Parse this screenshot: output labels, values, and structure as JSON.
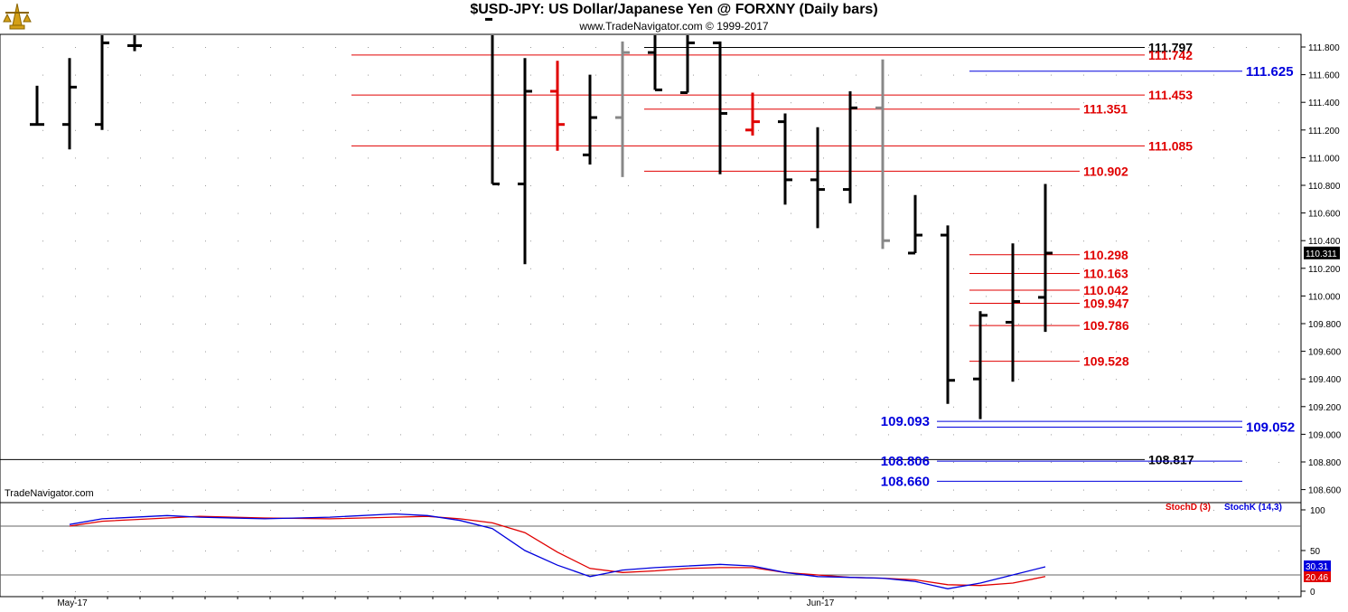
{
  "title": "$USD-JPY:  US Dollar/Japanese Yen @ FORXNY  (Daily bars)",
  "subtitle": "www.TradeNavigator.com © 1999-2017",
  "watermark": "TradeNavigator.com",
  "colors": {
    "black": "#000000",
    "red": "#e00000",
    "blue": "#0000dd",
    "gray": "#888888"
  },
  "chart_data": [
    {
      "type": "ohlc",
      "x_labels": [
        {
          "label": "May-17",
          "bar": 1
        },
        {
          "label": "Jun-17",
          "bar": 24
        }
      ],
      "y_ticks": [
        "111.800",
        "111.600",
        "111.400",
        "111.200",
        "111.000",
        "110.800",
        "110.600",
        "110.400",
        "110.200",
        "110.000",
        "109.800",
        "109.600",
        "109.400",
        "109.200",
        "109.000",
        "108.800",
        "108.600"
      ],
      "ylim": [
        108.5,
        112.0
      ],
      "last_price": "110.311",
      "bars": [
        {
          "bar": 0,
          "o": 111.24,
          "h": 111.52,
          "l": 111.24,
          "c": 111.24,
          "color": "black"
        },
        {
          "bar": 1,
          "o": 111.24,
          "h": 111.72,
          "l": 111.06,
          "c": 111.51,
          "color": "black"
        },
        {
          "bar": 2,
          "o": 111.24,
          "h": 112.0,
          "l": 111.2,
          "c": 111.83,
          "color": "black"
        },
        {
          "bar": 3,
          "o": 111.81,
          "h": 112.0,
          "l": 111.77,
          "c": 111.81,
          "color": "black"
        },
        {
          "bar": 14,
          "o": 112.0,
          "h": 112.0,
          "l": 110.81,
          "c": 110.81,
          "color": "black"
        },
        {
          "bar": 15,
          "o": 110.81,
          "h": 111.72,
          "l": 110.23,
          "c": 111.48,
          "color": "black"
        },
        {
          "bar": 16,
          "o": 111.48,
          "h": 111.7,
          "l": 111.05,
          "c": 111.24,
          "color": "red"
        },
        {
          "bar": 17,
          "o": 111.02,
          "h": 111.6,
          "l": 110.95,
          "c": 111.29,
          "color": "black"
        },
        {
          "bar": 18,
          "o": 111.29,
          "h": 111.84,
          "l": 110.86,
          "c": 111.76,
          "color": "gray"
        },
        {
          "bar": 19,
          "o": 111.76,
          "h": 112.0,
          "l": 111.49,
          "c": 111.49,
          "color": "black"
        },
        {
          "bar": 20,
          "o": 111.47,
          "h": 112.0,
          "l": 111.47,
          "c": 111.83,
          "color": "black"
        },
        {
          "bar": 21,
          "o": 111.83,
          "h": 111.84,
          "l": 110.88,
          "c": 111.32,
          "color": "black"
        },
        {
          "bar": 22,
          "o": 111.2,
          "h": 111.47,
          "l": 111.16,
          "c": 111.26,
          "color": "red"
        },
        {
          "bar": 23,
          "o": 111.26,
          "h": 111.32,
          "l": 110.66,
          "c": 110.84,
          "color": "black"
        },
        {
          "bar": 24,
          "o": 110.84,
          "h": 111.22,
          "l": 110.49,
          "c": 110.77,
          "color": "black"
        },
        {
          "bar": 25,
          "o": 110.77,
          "h": 111.48,
          "l": 110.67,
          "c": 111.36,
          "color": "black"
        },
        {
          "bar": 26,
          "o": 111.36,
          "h": 111.71,
          "l": 110.34,
          "c": 110.4,
          "color": "gray"
        },
        {
          "bar": 27,
          "o": 110.31,
          "h": 110.73,
          "l": 110.31,
          "c": 110.44,
          "color": "black"
        },
        {
          "bar": 28,
          "o": 110.44,
          "h": 110.51,
          "l": 109.22,
          "c": 109.39,
          "color": "black"
        },
        {
          "bar": 29,
          "o": 109.4,
          "h": 109.89,
          "l": 109.11,
          "c": 109.86,
          "color": "black"
        },
        {
          "bar": 30,
          "o": 109.81,
          "h": 110.38,
          "l": 109.38,
          "c": 109.96,
          "color": "black"
        },
        {
          "bar": 31,
          "o": 109.99,
          "h": 110.81,
          "l": 109.74,
          "c": 110.31,
          "color": "black"
        }
      ],
      "levels": [
        {
          "label": "111.797",
          "value": 111.797,
          "color": "black",
          "from_bar": 19,
          "to_bar": 34,
          "label_side": "right"
        },
        {
          "label": "111.742",
          "value": 111.742,
          "color": "red",
          "from_bar": 10,
          "to_bar": 34,
          "label_side": "right"
        },
        {
          "label": "111.625",
          "value": 111.625,
          "color": "blue",
          "from_bar": 29,
          "to_bar": 37,
          "label_side": "right"
        },
        {
          "label": "111.453",
          "value": 111.453,
          "color": "red",
          "from_bar": 10,
          "to_bar": 34,
          "label_side": "right"
        },
        {
          "label": "111.351",
          "value": 111.351,
          "color": "red",
          "from_bar": 19,
          "to_bar": 32,
          "label_side": "right"
        },
        {
          "label": "111.085",
          "value": 111.085,
          "color": "red",
          "from_bar": 10,
          "to_bar": 34,
          "label_side": "right"
        },
        {
          "label": "110.902",
          "value": 110.902,
          "color": "red",
          "from_bar": 19,
          "to_bar": 32,
          "label_side": "right"
        },
        {
          "label": "110.298",
          "value": 110.298,
          "color": "red",
          "from_bar": 29,
          "to_bar": 32,
          "label_side": "right"
        },
        {
          "label": "110.163",
          "value": 110.163,
          "color": "red",
          "from_bar": 29,
          "to_bar": 32,
          "label_side": "right"
        },
        {
          "label": "110.042",
          "value": 110.042,
          "color": "red",
          "from_bar": 29,
          "to_bar": 32,
          "label_side": "right"
        },
        {
          "label": "109.947",
          "value": 109.947,
          "color": "red",
          "from_bar": 29,
          "to_bar": 32,
          "label_side": "right"
        },
        {
          "label": "109.786",
          "value": 109.786,
          "color": "red",
          "from_bar": 29,
          "to_bar": 32,
          "label_side": "right"
        },
        {
          "label": "109.528",
          "value": 109.528,
          "color": "red",
          "from_bar": 29,
          "to_bar": 32,
          "label_side": "right"
        },
        {
          "label": "109.093",
          "value": 109.093,
          "color": "blue",
          "from_bar": 28,
          "to_bar": 37,
          "label_side": "left"
        },
        {
          "label": "109.052",
          "value": 109.052,
          "color": "blue",
          "from_bar": 28,
          "to_bar": 37,
          "label_side": "right"
        },
        {
          "label": "108.817",
          "value": 108.817,
          "color": "black",
          "from_bar": -1,
          "to_bar": 34,
          "label_side": "right"
        },
        {
          "label": "108.806",
          "value": 108.806,
          "color": "blue",
          "from_bar": 28,
          "to_bar": 37,
          "label_side": "left"
        },
        {
          "label": "108.660",
          "value": 108.66,
          "color": "blue",
          "from_bar": 28,
          "to_bar": 37,
          "label_side": "left"
        }
      ]
    },
    {
      "type": "line",
      "legend": [
        "StochD (3)",
        "StochK (14,3)"
      ],
      "y_ticks": [
        "100",
        "50",
        "0"
      ],
      "ylim": [
        0,
        100
      ],
      "reference_lines": [
        80,
        20
      ],
      "last_values": {
        "StochK (14,3)": "30.31",
        "StochD (3)": "20.46"
      },
      "series": [
        {
          "name": "StochD (3)",
          "color": "red",
          "points": [
            [
              1,
              80
            ],
            [
              2,
              86
            ],
            [
              4,
              90
            ],
            [
              5,
              92
            ],
            [
              7,
              90
            ],
            [
              9,
              89
            ],
            [
              11,
              91
            ],
            [
              12,
              92
            ],
            [
              13,
              89
            ],
            [
              14,
              84
            ],
            [
              15,
              72
            ],
            [
              16,
              48
            ],
            [
              17,
              28
            ],
            [
              18,
              23
            ],
            [
              19,
              25
            ],
            [
              20,
              28
            ],
            [
              21,
              29
            ],
            [
              22,
              29
            ],
            [
              23,
              23
            ],
            [
              24,
              20
            ],
            [
              25,
              17
            ],
            [
              26,
              16
            ],
            [
              27,
              14
            ],
            [
              28,
              8
            ],
            [
              29,
              7
            ],
            [
              30,
              10
            ],
            [
              31,
              18
            ]
          ]
        },
        {
          "name": "StochK (14,3)",
          "color": "blue",
          "points": [
            [
              1,
              82
            ],
            [
              2,
              89
            ],
            [
              4,
              93
            ],
            [
              5,
              91
            ],
            [
              7,
              89
            ],
            [
              9,
              91
            ],
            [
              11,
              95
            ],
            [
              12,
              93
            ],
            [
              13,
              87
            ],
            [
              14,
              77
            ],
            [
              15,
              50
            ],
            [
              16,
              32
            ],
            [
              17,
              18
            ],
            [
              18,
              26
            ],
            [
              19,
              29
            ],
            [
              20,
              31
            ],
            [
              21,
              33
            ],
            [
              22,
              31
            ],
            [
              23,
              23
            ],
            [
              24,
              18
            ],
            [
              25,
              17
            ],
            [
              26,
              16
            ],
            [
              27,
              12
            ],
            [
              28,
              3
            ],
            [
              29,
              10
            ],
            [
              30,
              20
            ],
            [
              31,
              30
            ]
          ]
        }
      ]
    }
  ]
}
